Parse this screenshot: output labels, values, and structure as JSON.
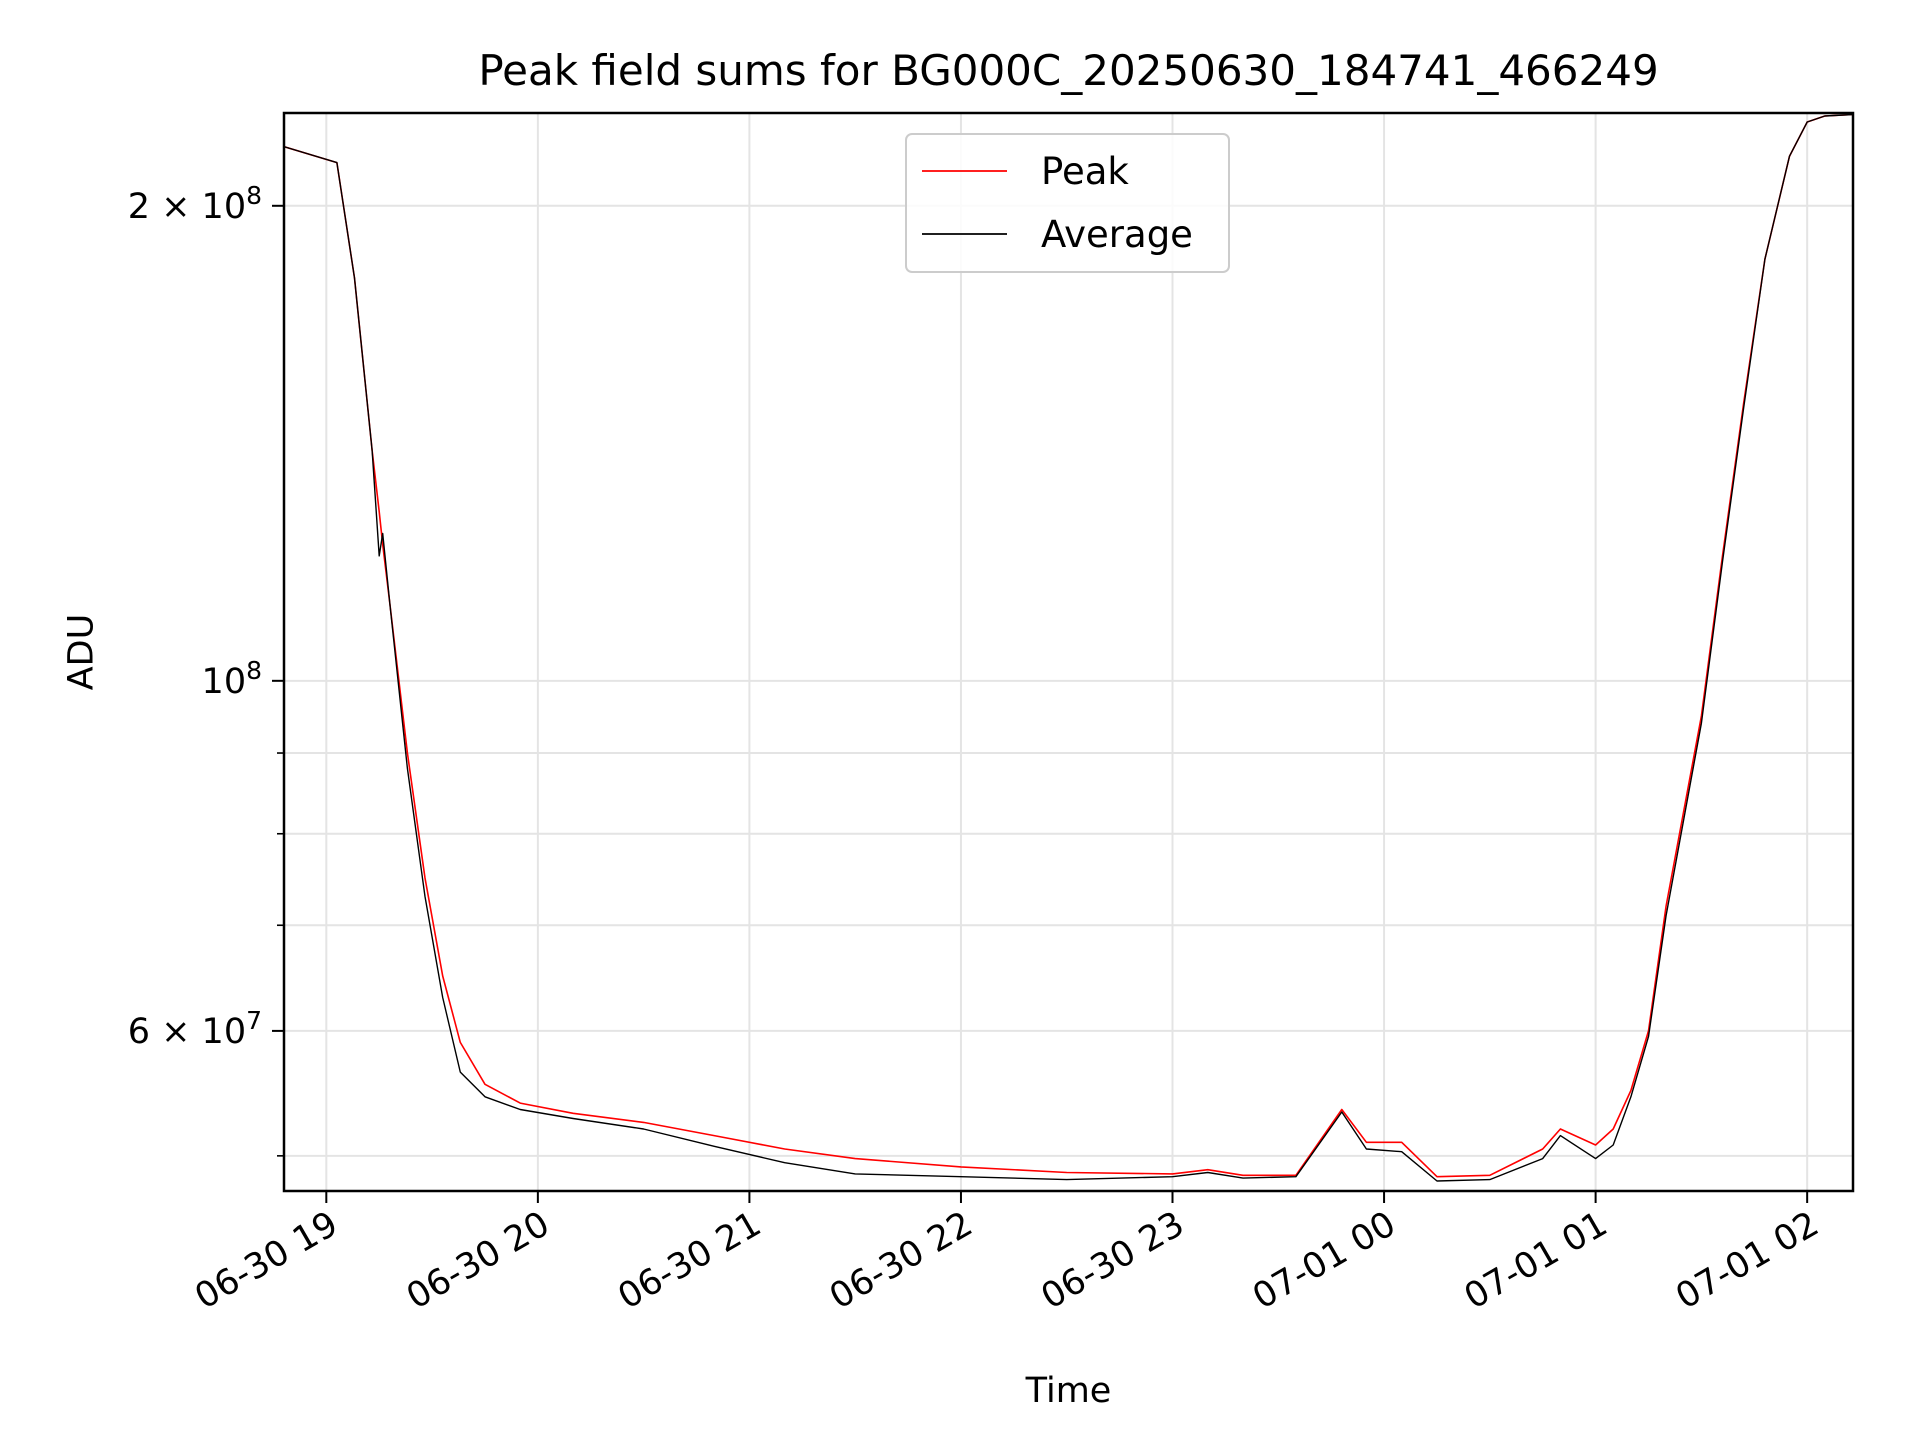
{
  "chart_data": {
    "type": "line",
    "title": "Peak field sums for BG000C_20250630_184741_466249",
    "xlabel": "Time",
    "ylabel": "ADU",
    "yscale": "log",
    "grid": true,
    "legend_position": "top-center",
    "xlim": [
      "2025-06-30 18:48",
      "2025-07-01 02:13"
    ],
    "ylim": [
      47500000,
      229000000
    ],
    "x_ticks": [
      {
        "value": "2025-06-30 19:00",
        "label": "06-30 19"
      },
      {
        "value": "2025-06-30 20:00",
        "label": "06-30 20"
      },
      {
        "value": "2025-06-30 21:00",
        "label": "06-30 21"
      },
      {
        "value": "2025-06-30 22:00",
        "label": "06-30 22"
      },
      {
        "value": "2025-06-30 23:00",
        "label": "06-30 23"
      },
      {
        "value": "2025-07-01 00:00",
        "label": "07-01 00"
      },
      {
        "value": "2025-07-01 01:00",
        "label": "07-01 01"
      },
      {
        "value": "2025-07-01 02:00",
        "label": "07-01 02"
      }
    ],
    "y_major_ticks": [
      {
        "value": 60000000,
        "label_mantissa": "6 × 10",
        "label_exp": "7"
      },
      {
        "value": 100000000,
        "label_mantissa": "10",
        "label_exp": "8"
      },
      {
        "value": 200000000,
        "label_mantissa": "2 × 10",
        "label_exp": "8"
      }
    ],
    "y_minor_ticks": [
      50000000,
      70000000,
      80000000,
      90000000
    ],
    "series": [
      {
        "name": "Peak",
        "color": "#ff0000",
        "x": [
          "2025-06-30 18:48",
          "2025-06-30 19:03",
          "2025-06-30 19:08",
          "2025-06-30 19:13",
          "2025-06-30 19:15",
          "2025-06-30 19:16",
          "2025-06-30 19:18",
          "2025-06-30 19:23",
          "2025-06-30 19:28",
          "2025-06-30 19:33",
          "2025-06-30 19:38",
          "2025-06-30 19:45",
          "2025-06-30 19:55",
          "2025-06-30 20:10",
          "2025-06-30 20:30",
          "2025-06-30 20:50",
          "2025-06-30 21:10",
          "2025-06-30 21:30",
          "2025-06-30 22:00",
          "2025-06-30 22:30",
          "2025-06-30 23:00",
          "2025-06-30 23:10",
          "2025-06-30 23:20",
          "2025-06-30 23:35",
          "2025-06-30 23:48",
          "2025-06-30 23:55",
          "2025-07-01 00:05",
          "2025-07-01 00:15",
          "2025-07-01 00:30",
          "2025-07-01 00:45",
          "2025-07-01 00:50",
          "2025-07-01 01:00",
          "2025-07-01 01:05",
          "2025-07-01 01:10",
          "2025-07-01 01:15",
          "2025-07-01 01:20",
          "2025-07-01 01:30",
          "2025-07-01 01:36",
          "2025-07-01 01:42",
          "2025-07-01 01:48",
          "2025-07-01 01:55",
          "2025-07-01 02:00",
          "2025-07-01 02:05",
          "2025-07-01 02:13"
        ],
        "y": [
          218000000,
          213000000,
          180000000,
          140000000,
          128000000,
          122000000,
          112000000,
          90000000,
          75000000,
          65000000,
          59000000,
          55500000,
          54000000,
          53200000,
          52500000,
          51500000,
          50500000,
          49800000,
          49200000,
          48800000,
          48700000,
          49000000,
          48600000,
          48600000,
          53500000,
          51000000,
          51000000,
          48500000,
          48600000,
          50500000,
          52000000,
          50800000,
          52000000,
          55000000,
          60000000,
          72000000,
          95000000,
          120000000,
          150000000,
          185000000,
          215000000,
          226000000,
          228000000,
          228500000
        ]
      },
      {
        "name": "Average",
        "color": "#000000",
        "x": [
          "2025-06-30 18:48",
          "2025-06-30 19:03",
          "2025-06-30 19:08",
          "2025-06-30 19:13",
          "2025-06-30 19:15",
          "2025-06-30 19:16",
          "2025-06-30 19:18",
          "2025-06-30 19:23",
          "2025-06-30 19:28",
          "2025-06-30 19:33",
          "2025-06-30 19:38",
          "2025-06-30 19:45",
          "2025-06-30 19:55",
          "2025-06-30 20:10",
          "2025-06-30 20:30",
          "2025-06-30 20:50",
          "2025-06-30 21:10",
          "2025-06-30 21:30",
          "2025-06-30 22:00",
          "2025-06-30 22:30",
          "2025-06-30 23:00",
          "2025-06-30 23:10",
          "2025-06-30 23:20",
          "2025-06-30 23:35",
          "2025-06-30 23:48",
          "2025-06-30 23:55",
          "2025-07-01 00:05",
          "2025-07-01 00:15",
          "2025-07-01 00:30",
          "2025-07-01 00:45",
          "2025-07-01 00:50",
          "2025-07-01 01:00",
          "2025-07-01 01:05",
          "2025-07-01 01:10",
          "2025-07-01 01:15",
          "2025-07-01 01:20",
          "2025-07-01 01:30",
          "2025-07-01 01:36",
          "2025-07-01 01:42",
          "2025-07-01 01:48",
          "2025-07-01 01:55",
          "2025-07-01 02:00",
          "2025-07-01 02:05",
          "2025-07-01 02:13"
        ],
        "y": [
          218000000,
          213000000,
          180000000,
          140000000,
          120000000,
          124000000,
          112000000,
          88000000,
          73000000,
          63000000,
          56500000,
          54500000,
          53500000,
          52800000,
          52000000,
          50700000,
          49500000,
          48700000,
          48500000,
          48300000,
          48500000,
          48800000,
          48400000,
          48500000,
          53300000,
          50500000,
          50300000,
          48200000,
          48300000,
          49800000,
          51500000,
          49800000,
          50800000,
          54500000,
          59500000,
          71000000,
          94000000,
          119000000,
          149000000,
          185000000,
          215000000,
          226000000,
          228000000,
          228500000
        ]
      }
    ]
  }
}
